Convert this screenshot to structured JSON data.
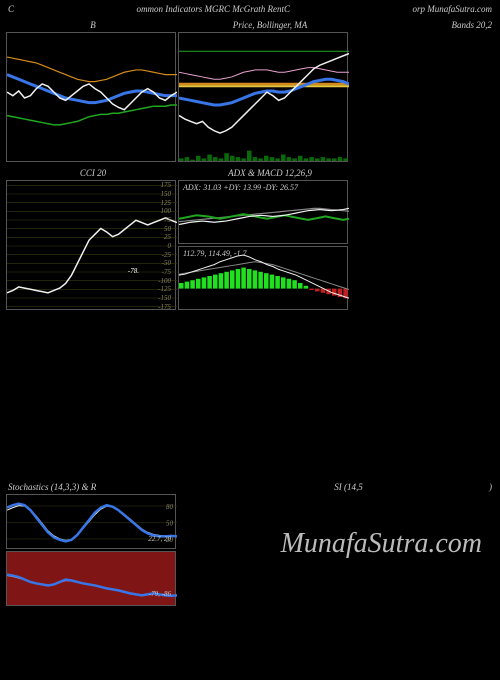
{
  "header": {
    "left": "C",
    "mid": "ommon Indicators MGRC McGrath RentC",
    "right": "orp MunafaSutra.com"
  },
  "titles": {
    "b": "B",
    "price": "Price,  Bollinger, MA",
    "bands": "Bands 20,2",
    "cci": "CCI 20",
    "adx": "ADX  & MACD 12,26,9",
    "stoch": "Stochastics                       (14,3,3) & R",
    "si": "SI                             (14,5",
    "paren": ")"
  },
  "adx_text": "ADX: 31.03 +DY: 13.99 -DY: 26.57",
  "macd_text": "112.79,  114.49,  -1.7",
  "cci_val": "-78.",
  "stoch_val": "22.7, 20",
  "rsi_val": "-79, -86",
  "watermark": "MunafaSutra.com",
  "colors": {
    "bg": "#000000",
    "grid": "#3a3a10",
    "white": "#f0f0f0",
    "blue": "#3876e8",
    "green": "#1fa81f",
    "darkgreen": "#0a6a0a",
    "orange": "#d48a1a",
    "yellow": "#e8c840",
    "pink": "#e8a0d0",
    "red": "#c02020",
    "gray": "#888888"
  },
  "cci_ticks": [
    "175",
    "150",
    "125",
    "100",
    "75",
    "50",
    "25",
    "0",
    "-25",
    "-50",
    "-75",
    "-100",
    "-125",
    "-150",
    "-175"
  ],
  "stoch_ticks": [
    "80",
    "50",
    "20"
  ],
  "price1": {
    "white": [
      55,
      52,
      56,
      50,
      52,
      58,
      62,
      60,
      55,
      50,
      48,
      52,
      56,
      60,
      62,
      58,
      55,
      50,
      45,
      42,
      40,
      45,
      50,
      55,
      58,
      55,
      50,
      48,
      52,
      55
    ],
    "blue": [
      70,
      68,
      66,
      64,
      62,
      60,
      58,
      56,
      54,
      52,
      50,
      49,
      48,
      47,
      46,
      46,
      47,
      48,
      50,
      52,
      54,
      55,
      56,
      56,
      55,
      54,
      53,
      52,
      52,
      52
    ],
    "green": [
      35,
      34,
      33,
      32,
      31,
      30,
      29,
      28,
      27,
      27,
      28,
      29,
      30,
      32,
      34,
      35,
      36,
      36,
      37,
      37,
      38,
      39,
      40,
      41,
      42,
      43,
      43,
      43,
      44,
      44
    ],
    "orange": [
      85,
      84,
      83,
      82,
      81,
      80,
      78,
      76,
      74,
      72,
      70,
      68,
      66,
      65,
      64,
      64,
      65,
      66,
      68,
      70,
      72,
      73,
      74,
      74,
      73,
      72,
      71,
      70,
      70,
      70
    ]
  },
  "price2": {
    "white": [
      35,
      32,
      30,
      28,
      30,
      25,
      22,
      20,
      22,
      25,
      30,
      35,
      40,
      45,
      50,
      55,
      52,
      48,
      50,
      55,
      60,
      65,
      70,
      75,
      78,
      80,
      82,
      84,
      86,
      88
    ],
    "blue": [
      50,
      49,
      48,
      47,
      46,
      45,
      44,
      44,
      45,
      46,
      48,
      50,
      52,
      54,
      55,
      56,
      56,
      55,
      55,
      56,
      58,
      60,
      62,
      64,
      65,
      66,
      66,
      65,
      64,
      62
    ],
    "green": [
      90,
      90,
      90,
      90,
      90,
      90,
      90,
      90,
      90,
      90,
      90,
      90,
      90,
      90,
      90,
      90,
      90,
      90,
      90,
      90,
      90,
      90,
      90,
      90,
      90,
      90,
      90,
      90,
      90,
      90
    ],
    "orange": [
      62,
      62,
      62,
      62,
      62,
      62,
      62,
      62,
      62,
      62,
      62,
      62,
      62,
      62,
      62,
      62,
      62,
      62,
      62,
      62,
      62,
      62,
      62,
      62,
      62,
      62,
      62,
      62,
      62,
      62
    ],
    "yellow": [
      60,
      60,
      60,
      60,
      60,
      60,
      60,
      60,
      60,
      60,
      60,
      60,
      60,
      60,
      60,
      60,
      60,
      60,
      60,
      60,
      60,
      60,
      60,
      60,
      60,
      60,
      60,
      60,
      60,
      60
    ],
    "pink": [
      72,
      71,
      70,
      69,
      68,
      67,
      66,
      66,
      67,
      68,
      70,
      72,
      73,
      74,
      74,
      74,
      73,
      72,
      72,
      73,
      74,
      75,
      76,
      76,
      75,
      74,
      73,
      72,
      72,
      72
    ],
    "volbars": [
      2,
      3,
      1,
      4,
      2,
      5,
      3,
      2,
      6,
      4,
      3,
      2,
      8,
      3,
      2,
      4,
      3,
      2,
      5,
      3,
      2,
      4,
      2,
      3,
      2,
      3,
      2,
      2,
      3,
      2
    ]
  },
  "cci": {
    "line": [
      10,
      12,
      15,
      14,
      13,
      12,
      11,
      10,
      12,
      14,
      18,
      25,
      35,
      45,
      55,
      60,
      65,
      62,
      58,
      60,
      64,
      68,
      72,
      70,
      68,
      70,
      72,
      74,
      72,
      70
    ]
  },
  "adx": {
    "white": [
      30,
      32,
      34,
      35,
      36,
      35,
      34,
      35,
      36,
      38,
      40,
      42,
      44,
      45,
      46,
      45,
      44,
      45,
      46,
      48,
      50,
      52,
      54,
      55,
      56,
      55,
      54,
      55,
      56,
      58
    ],
    "green": [
      40,
      42,
      44,
      46,
      45,
      44,
      42,
      40,
      42,
      44,
      46,
      48,
      46,
      44,
      42,
      40,
      42,
      44,
      46,
      44,
      42,
      40,
      38,
      40,
      42,
      44,
      42,
      40,
      38,
      40
    ],
    "gray": [
      35,
      36,
      37,
      38,
      39,
      40,
      41,
      42,
      43,
      44,
      45,
      46,
      47,
      48,
      49,
      50,
      51,
      52,
      53,
      54,
      55,
      56,
      57,
      58,
      58,
      57,
      56,
      55,
      54,
      53
    ]
  },
  "macd": {
    "bars": [
      8,
      10,
      12,
      14,
      16,
      18,
      20,
      22,
      24,
      26,
      28,
      30,
      28,
      26,
      24,
      22,
      20,
      18,
      16,
      14,
      12,
      8,
      4,
      -2,
      -4,
      -6,
      -8,
      -10,
      -12,
      -14
    ],
    "sig": [
      10,
      11,
      12,
      13,
      14,
      15,
      16,
      17,
      18,
      19,
      20,
      21,
      22,
      23,
      22,
      21,
      20,
      18,
      16,
      14,
      12,
      10,
      8,
      6,
      4,
      2,
      0,
      -2,
      -4,
      -6
    ],
    "line": [
      9,
      10,
      12,
      14,
      16,
      18,
      20,
      23,
      25,
      27,
      29,
      30,
      28,
      25,
      23,
      20,
      18,
      15,
      13,
      11,
      9,
      6,
      3,
      0,
      -3,
      -6,
      -9,
      -11,
      -13,
      -15
    ]
  },
  "stoch": {
    "blue": [
      80,
      85,
      88,
      85,
      75,
      60,
      45,
      30,
      20,
      15,
      12,
      15,
      25,
      40,
      55,
      70,
      80,
      85,
      82,
      75,
      65,
      55,
      45,
      35,
      28,
      24,
      22,
      22,
      23,
      22
    ],
    "white": [
      75,
      80,
      84,
      83,
      76,
      63,
      48,
      33,
      23,
      17,
      14,
      16,
      24,
      38,
      52,
      66,
      77,
      83,
      81,
      76,
      67,
      57,
      47,
      37,
      30,
      26,
      24,
      23,
      24,
      23
    ]
  },
  "rsi": {
    "blue": [
      60,
      58,
      55,
      50,
      45,
      42,
      40,
      38,
      40,
      45,
      50,
      48,
      45,
      42,
      40,
      38,
      35,
      32,
      30,
      28,
      25,
      22,
      20,
      18,
      20,
      22,
      20,
      18,
      17,
      18
    ],
    "white": [
      58,
      56,
      53,
      49,
      45,
      43,
      41,
      39,
      40,
      44,
      48,
      47,
      45,
      43,
      41,
      39,
      36,
      33,
      31,
      29,
      26,
      23,
      21,
      19,
      21,
      22,
      21,
      19,
      18,
      19
    ]
  }
}
